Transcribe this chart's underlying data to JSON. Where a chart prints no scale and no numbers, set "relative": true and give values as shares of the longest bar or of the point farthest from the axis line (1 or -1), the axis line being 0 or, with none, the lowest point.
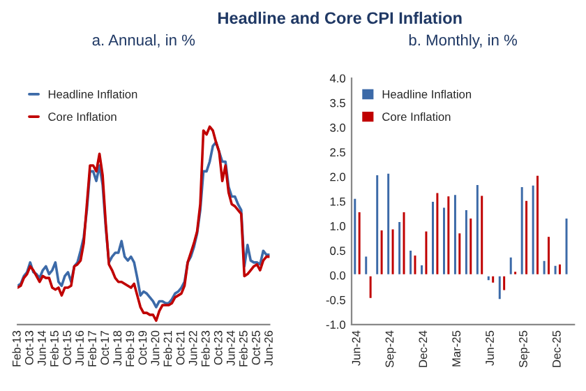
{
  "chart_data": [
    {
      "type": "line",
      "title": "Headline and Core CPI Inflation",
      "subtitle": "a. Annual, in %",
      "relative": true,
      "legend": "top left",
      "grid": false,
      "marker": "none",
      "line_style": "solid",
      "categories": [
        "Feb-13",
        null,
        null,
        null,
        "Oct-13",
        null,
        null,
        null,
        "Jun-14",
        null,
        null,
        null,
        "Feb-15",
        null,
        null,
        null,
        "Oct-15",
        null,
        null,
        null,
        "Jun-16",
        null,
        null,
        null,
        "Feb-17",
        null,
        null,
        null,
        "Oct-17",
        null,
        null,
        null,
        "Jun-18",
        null,
        null,
        null,
        "Feb-19",
        null,
        null,
        null,
        "Oct-19",
        null,
        null,
        null,
        "Jun-20",
        null,
        null,
        null,
        "Feb-21",
        null,
        null,
        null,
        "Oct-21",
        null,
        null,
        null,
        "Jun-22",
        null,
        null,
        null,
        "Feb-23",
        null,
        null,
        null,
        "Oct-23",
        null,
        null,
        null,
        "Jun-24",
        null,
        null,
        null,
        "Feb-25",
        null,
        null,
        null,
        "Oct-25",
        null,
        null,
        null,
        "Jun-26"
      ],
      "series": [
        {
          "name": "Headline Inflation",
          "color": "#3c6aa8",
          "values": [
            0.18,
            0.19,
            0.23,
            0.25,
            0.3,
            0.25,
            0.24,
            0.22,
            0.26,
            0.28,
            0.24,
            0.26,
            0.3,
            0.2,
            0.18,
            0.23,
            0.25,
            0.2,
            0.28,
            0.3,
            0.36,
            0.43,
            0.57,
            0.77,
            0.77,
            0.72,
            0.8,
            0.7,
            0.48,
            0.3,
            0.33,
            0.35,
            0.35,
            0.41,
            0.33,
            0.31,
            0.33,
            0.3,
            0.22,
            0.13,
            0.15,
            0.14,
            0.12,
            0.1,
            0.07,
            0.1,
            0.1,
            0.09,
            0.09,
            0.11,
            0.14,
            0.15,
            0.17,
            0.2,
            0.3,
            0.33,
            0.38,
            0.45,
            0.57,
            0.77,
            0.77,
            0.82,
            0.9,
            0.92,
            0.87,
            0.82,
            0.82,
            0.69,
            0.64,
            0.64,
            0.6,
            0.57,
            0.28,
            0.39,
            0.31,
            0.3,
            0.3,
            0.29,
            0.36,
            0.34,
            0.34
          ]
        },
        {
          "name": "Core Inflation",
          "color": "#c00000",
          "values": [
            0.17,
            0.18,
            0.22,
            0.24,
            0.28,
            0.26,
            0.23,
            0.2,
            0.23,
            0.22,
            0.22,
            0.17,
            0.16,
            0.17,
            0.13,
            0.17,
            0.17,
            0.18,
            0.28,
            0.29,
            0.31,
            0.4,
            0.6,
            0.8,
            0.8,
            0.77,
            0.86,
            0.75,
            0.5,
            0.29,
            0.26,
            0.22,
            0.2,
            0.2,
            0.19,
            0.18,
            0.17,
            0.19,
            0.13,
            0.07,
            0.04,
            0.04,
            0.03,
            0.03,
            0.0,
            0.05,
            0.08,
            0.08,
            0.08,
            0.09,
            0.12,
            0.13,
            0.14,
            0.18,
            0.3,
            0.35,
            0.4,
            0.46,
            0.6,
            0.98,
            0.96,
            1.0,
            0.98,
            0.92,
            0.87,
            0.72,
            0.8,
            0.66,
            0.6,
            0.59,
            0.57,
            0.55,
            0.23,
            0.24,
            0.26,
            0.28,
            0.29,
            0.26,
            0.31,
            0.33,
            0.33
          ]
        }
      ]
    },
    {
      "type": "bar",
      "subtitle": "b. Monthly, in %",
      "legend": "top left",
      "grid": false,
      "categories": [
        "Jun-24",
        null,
        null,
        "Sep-24",
        null,
        null,
        "Dec-24",
        null,
        null,
        "Mar-25",
        null,
        null,
        "Jun-25",
        null,
        null,
        "Sep-25",
        null,
        null,
        "Dec-25",
        null
      ],
      "ylim": [
        -1.0,
        4.0
      ],
      "yticks": [
        {
          "value": -1.0,
          "label": "-1.0"
        },
        {
          "value": -0.5,
          "label": "-0.5"
        },
        {
          "value": 0.0,
          "label": "0.0"
        },
        {
          "value": 0.5,
          "label": "0.5"
        },
        {
          "value": 1.0,
          "label": "1.0"
        },
        {
          "value": 1.5,
          "label": "1.5"
        },
        {
          "value": 2.0,
          "label": "2.0"
        },
        {
          "value": 2.5,
          "label": "2.5"
        },
        {
          "value": 3.0,
          "label": "3.0"
        },
        {
          "value": 3.5,
          "label": "3.5"
        },
        {
          "value": 4.0,
          "label": "4.0"
        }
      ],
      "series": [
        {
          "name": "Headline Inflation",
          "color": "#3c6aa8",
          "values": [
            1.57,
            0.4,
            2.05,
            2.08,
            1.1,
            0.52,
            0.22,
            1.51,
            1.39,
            1.65,
            1.34,
            1.85,
            -0.12,
            -0.5,
            0.38,
            1.81,
            1.84,
            0.31,
            0.21,
            1.17
          ]
        },
        {
          "name": "Core Inflation",
          "color": "#c00000",
          "values": [
            1.3,
            -0.48,
            0.93,
            0.95,
            1.3,
            0.42,
            0.91,
            1.69,
            1.62,
            0.87,
            1.17,
            1.63,
            -0.17,
            -0.32,
            0.09,
            1.53,
            2.04,
            0.8,
            0.24,
            null
          ]
        }
      ]
    }
  ]
}
